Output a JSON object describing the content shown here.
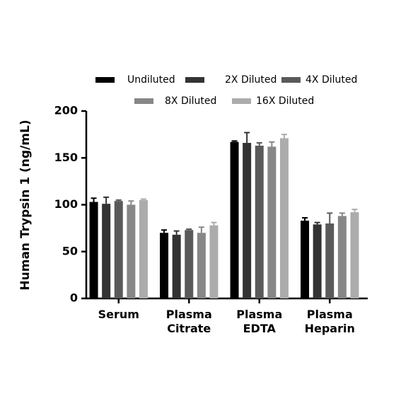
{
  "chart_data": {
    "type": "bar",
    "y_label": "Human Trypsin 1 (ng/mL)",
    "categories": [
      "Serum",
      "Plasma Citrate",
      "Plasma EDTA",
      "Plasma Heparin"
    ],
    "series": [
      {
        "name": "Undiluted",
        "color": "#000000",
        "values": [
          103,
          70,
          167,
          83
        ],
        "errors": [
          4,
          3,
          1,
          3
        ]
      },
      {
        "name": "2X Diluted",
        "color": "#333333",
        "values": [
          101,
          68,
          166,
          79
        ],
        "errors": [
          7,
          4,
          11,
          2
        ]
      },
      {
        "name": "4X Diluted",
        "color": "#5a5a5a",
        "values": [
          104,
          73,
          163,
          80
        ],
        "errors": [
          1,
          1,
          3,
          11
        ]
      },
      {
        "name": "8X Diluted",
        "color": "#878787",
        "values": [
          100,
          70,
          162,
          88
        ],
        "errors": [
          4,
          6,
          5,
          3
        ]
      },
      {
        "name": "16X Diluted",
        "color": "#acacac",
        "values": [
          105,
          78,
          171,
          92
        ],
        "errors": [
          1,
          3,
          4,
          3
        ]
      }
    ],
    "ylim": [
      0,
      200
    ],
    "yticks": [
      0,
      50,
      100,
      150,
      200
    ]
  }
}
